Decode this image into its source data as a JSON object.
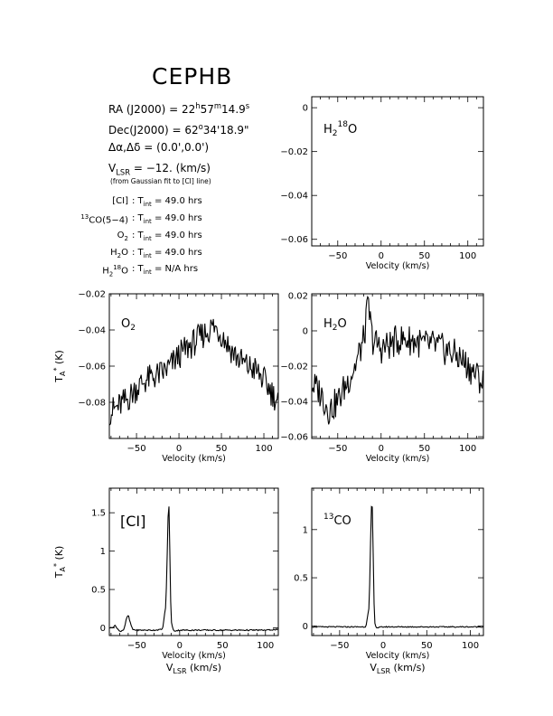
{
  "source": "CEPHB",
  "header": {
    "ra_label": "RA (J2000) = ",
    "ra_value": [
      "22",
      "h",
      "57",
      "m",
      "14.9",
      "s"
    ],
    "dec_label": "Dec(J2000) = ",
    "dec_value": [
      "62",
      "o",
      "34'18.9\""
    ],
    "offset_label": "Δα,Δδ = ",
    "offset_value": "(0.0',0.0')",
    "vlsr_value": " = −12. (km/s)",
    "vlsr_note": "(from Gaussian fit to [CI] line)"
  },
  "integration_times": [
    {
      "line": "[CI]",
      "value": "49.0 hrs"
    },
    {
      "line": "13CO(5−4)",
      "value": "49.0 hrs"
    },
    {
      "line": "O2",
      "value": "49.0 hrs"
    },
    {
      "line": "H2O",
      "value": "49.0 hrs"
    },
    {
      "line": "H218O",
      "value": "N/A hrs"
    }
  ],
  "chart_data": [
    {
      "type": "line",
      "panel": "H2 18O",
      "label": "H218O",
      "xlabel": "Velocity (km/s)",
      "ylabel": "",
      "xlim": [
        -80,
        118
      ],
      "ylim": [
        -0.063,
        0.005
      ],
      "xticks": [
        -50,
        0,
        50,
        100
      ],
      "yticks": [
        0,
        -0.02,
        -0.04,
        -0.06
      ],
      "ytick_labels": [
        "0",
        "−0.02",
        "−0.04",
        "−0.06"
      ],
      "series": []
    },
    {
      "type": "line",
      "panel": "O2",
      "label": "O2",
      "xlabel": "Velocity (km/s)",
      "ylabel": "TA* (K)",
      "xlim": [
        -82,
        117
      ],
      "ylim": [
        -0.1,
        -0.02
      ],
      "xticks": [
        -50,
        0,
        50,
        100
      ],
      "yticks": [
        -0.02,
        -0.04,
        -0.06,
        -0.08
      ],
      "ytick_labels": [
        "−0.02",
        "−0.04",
        "−0.06",
        "−0.08"
      ],
      "series": [
        {
          "x": [
            -80,
            -70,
            -60,
            -50,
            -40,
            -30,
            -20,
            -10,
            0,
            10,
            20,
            30,
            40,
            50,
            60,
            70,
            80,
            90,
            100,
            110,
            117
          ],
          "y": [
            -0.085,
            -0.082,
            -0.078,
            -0.072,
            -0.068,
            -0.066,
            -0.064,
            -0.06,
            -0.054,
            -0.05,
            -0.046,
            -0.042,
            -0.038,
            -0.042,
            -0.05,
            -0.056,
            -0.06,
            -0.062,
            -0.068,
            -0.075,
            -0.08
          ]
        }
      ]
    },
    {
      "type": "line",
      "panel": "H2O",
      "label": "H2O",
      "xlabel": "Velocity (km/s)",
      "ylabel": "",
      "xlim": [
        -80,
        118
      ],
      "ylim": [
        -0.061,
        0.021
      ],
      "xticks": [
        -50,
        0,
        50,
        100
      ],
      "yticks": [
        0.02,
        0,
        -0.02,
        -0.04,
        -0.06
      ],
      "ytick_labels": [
        "0.02",
        "0",
        "−0.02",
        "−0.04",
        "−0.06"
      ],
      "series": [
        {
          "x": [
            -80,
            -70,
            -60,
            -50,
            -40,
            -30,
            -20,
            -15,
            -10,
            0,
            10,
            20,
            30,
            40,
            50,
            60,
            70,
            80,
            90,
            100,
            110,
            118
          ],
          "y": [
            -0.03,
            -0.035,
            -0.045,
            -0.04,
            -0.03,
            -0.02,
            -0.005,
            0.015,
            -0.005,
            -0.01,
            -0.008,
            -0.005,
            -0.005,
            -0.006,
            -0.008,
            -0.008,
            -0.01,
            -0.012,
            -0.015,
            -0.02,
            -0.025,
            -0.03
          ]
        }
      ]
    },
    {
      "type": "line",
      "panel": "[CI]",
      "label": "[CI]",
      "xlabel": "Velocity (km/s)",
      "xlabel2": "VLSR (km/s)",
      "ylabel": "TA* (K)",
      "xlim": [
        -82,
        115
      ],
      "ylim": [
        -0.1,
        1.82
      ],
      "xticks": [
        -50,
        0,
        50,
        100
      ],
      "yticks": [
        0,
        0.5,
        1,
        1.5
      ],
      "ytick_labels": [
        "0",
        "0.5",
        "1",
        "1.5"
      ],
      "series": [
        {
          "x": [
            -80,
            -75,
            -70,
            -65,
            -62,
            -60,
            -58,
            -55,
            -50,
            -40,
            -30,
            -20,
            -16,
            -14,
            -13,
            -12,
            -11,
            -10,
            -8,
            -6,
            0,
            20,
            40,
            60,
            80,
            100,
            115
          ],
          "y": [
            0.0,
            0.03,
            -0.05,
            -0.02,
            0.12,
            0.17,
            0.08,
            -0.02,
            -0.03,
            -0.03,
            -0.03,
            -0.02,
            0.3,
            1.2,
            1.7,
            1.45,
            0.6,
            0.1,
            -0.02,
            -0.04,
            -0.03,
            -0.03,
            -0.03,
            -0.03,
            -0.03,
            -0.03,
            -0.02
          ]
        }
      ]
    },
    {
      "type": "line",
      "panel": "13CO",
      "label": "13CO",
      "xlabel": "Velocity (km/s)",
      "xlabel2": "VLSR (km/s)",
      "ylabel": "",
      "xlim": [
        -82,
        115
      ],
      "ylim": [
        -0.1,
        1.43
      ],
      "xticks": [
        -50,
        0,
        50,
        100
      ],
      "yticks": [
        0,
        0.5,
        1
      ],
      "ytick_labels": [
        "0",
        "0.5",
        "1"
      ],
      "series": [
        {
          "x": [
            -80,
            -60,
            -40,
            -20,
            -16,
            -14,
            -13,
            -12,
            -11,
            -10,
            -8,
            0,
            20,
            40,
            60,
            80,
            100,
            115
          ],
          "y": [
            -0.01,
            -0.01,
            -0.01,
            -0.01,
            0.2,
            1.1,
            1.37,
            1.1,
            0.4,
            0.05,
            -0.02,
            -0.01,
            -0.01,
            -0.01,
            -0.01,
            -0.01,
            -0.01,
            -0.01
          ]
        }
      ]
    }
  ]
}
